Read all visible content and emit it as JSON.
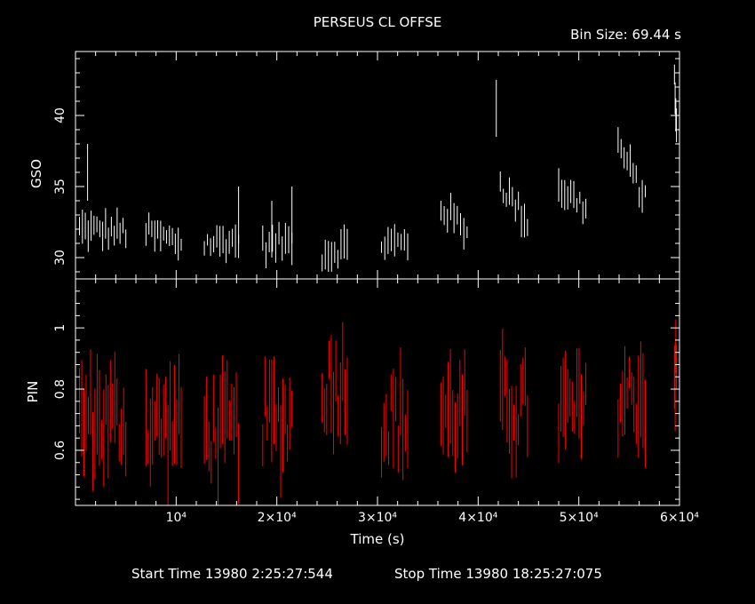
{
  "header": {
    "title": "PERSEUS CL OFFSE",
    "bin_size": "Bin Size: 69.44 s"
  },
  "footer": {
    "start_time": "Start Time 13980  2:25:27:544",
    "stop_time": "Stop Time 13980 18:25:27:075"
  },
  "colors": {
    "background": "#000000",
    "axes": "#ffffff",
    "gso_series": "#ffffff",
    "pin_series": "#ff0000"
  },
  "chart_data": [
    {
      "type": "scatter",
      "name": "GSO panel",
      "ylabel": "GSO",
      "xlim": [
        0,
        60000
      ],
      "ylim": [
        28.5,
        44.5
      ],
      "yticks": [
        30,
        35,
        40
      ],
      "yticklabels": [
        "30",
        "35",
        "40"
      ],
      "error_bars": true,
      "series": [
        {
          "color": "#ffffff",
          "segments": [
            {
              "x_range": [
                400,
                5000
              ],
              "y_start": 32.0,
              "y_end": 31.8
            },
            {
              "x_range": [
                7000,
                10500
              ],
              "y_start": 31.8,
              "y_end": 31.0
            },
            {
              "x_range": [
                12800,
                16200
              ],
              "y_start": 31.0,
              "y_end": 31.2
            },
            {
              "x_range": [
                18600,
                21500
              ],
              "y_start": 30.8,
              "y_end": 31.2
            },
            {
              "x_range": [
                24500,
                27000
              ],
              "y_start": 30.2,
              "y_end": 30.8
            },
            {
              "x_range": [
                30400,
                33000
              ],
              "y_start": 31.0,
              "y_end": 31.0
            },
            {
              "x_range": [
                36300,
                38900
              ],
              "y_start": 33.5,
              "y_end": 32.0
            },
            {
              "x_range": [
                42200,
                44900
              ],
              "y_start": 35.2,
              "y_end": 32.5
            },
            {
              "x_range": [
                48000,
                50700
              ],
              "y_start": 35.0,
              "y_end": 33.5
            },
            {
              "x_range": [
                53900,
                56600
              ],
              "y_start": 38.0,
              "y_end": 34.0
            },
            {
              "x_range": [
                59500,
                59700
              ],
              "y_start": 43.0,
              "y_end": 39.0
            }
          ],
          "spikes": [
            {
              "x": 1200,
              "y": 38.0
            },
            {
              "x": 16200,
              "y": 35.0
            },
            {
              "x": 19500,
              "y": 34.0
            },
            {
              "x": 21500,
              "y": 35.0
            },
            {
              "x": 41800,
              "y": 42.5
            }
          ]
        }
      ]
    },
    {
      "type": "scatter",
      "name": "PIN panel",
      "xlabel": "Time (s)",
      "ylabel": "PIN",
      "xlim": [
        0,
        60000
      ],
      "ylim": [
        0.42,
        1.16
      ],
      "xticks": [
        10000,
        20000,
        30000,
        40000,
        50000,
        60000
      ],
      "xticklabels": [
        "10⁴",
        "2×10⁴",
        "3×10⁴",
        "4×10⁴",
        "5×10⁴",
        "6×10⁴"
      ],
      "yticks": [
        0.6,
        0.8,
        1.0
      ],
      "yticklabels": [
        "0.6",
        "0.8",
        "1"
      ],
      "error_bars": true,
      "series": [
        {
          "color": "#ff0000",
          "segments": [
            {
              "x_range": [
                400,
                5000
              ],
              "y_mean": 0.7
            },
            {
              "x_range": [
                7000,
                10500
              ],
              "y_mean": 0.68
            },
            {
              "x_range": [
                12800,
                16200
              ],
              "y_mean": 0.66
            },
            {
              "x_range": [
                18600,
                21500
              ],
              "y_mean": 0.7
            },
            {
              "x_range": [
                24500,
                27000
              ],
              "y_mean": 0.82
            },
            {
              "x_range": [
                30400,
                33000
              ],
              "y_mean": 0.7
            },
            {
              "x_range": [
                36300,
                38900
              ],
              "y_mean": 0.72
            },
            {
              "x_range": [
                42200,
                44900
              ],
              "y_mean": 0.74
            },
            {
              "x_range": [
                48000,
                50700
              ],
              "y_mean": 0.72
            },
            {
              "x_range": [
                53900,
                56600
              ],
              "y_mean": 0.78
            },
            {
              "x_range": [
                59500,
                59700
              ],
              "y_mean": 0.85
            }
          ]
        }
      ]
    }
  ]
}
